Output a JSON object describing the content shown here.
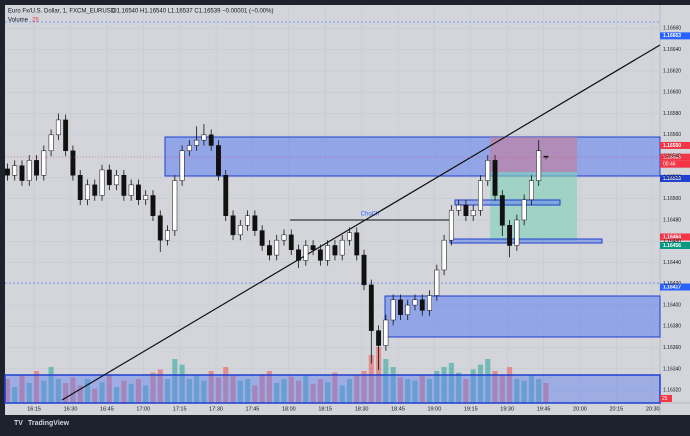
{
  "chart_data": {
    "type": "candlestick",
    "title": "Euro Fx/U.S. Dollar, 1, FXCM_EURUSD",
    "subtitle": "O1.16540 H1.16540 L1.16537 C1.16539 −0.00001 (−0.00%)",
    "annotation": "ChoCh",
    "countdown": "00:46",
    "brand": "TradingView",
    "x": [
      "16:04",
      "16:07",
      "16:10",
      "16:13",
      "16:16",
      "16:19",
      "16:22",
      "16:25",
      "16:28",
      "16:31",
      "16:34",
      "16:37",
      "16:40",
      "16:43",
      "16:46",
      "16:49",
      "16:52",
      "16:55",
      "16:58",
      "17:01",
      "17:04",
      "17:07",
      "17:10",
      "17:13",
      "17:16",
      "17:19",
      "17:22",
      "17:25",
      "17:28",
      "17:31",
      "17:34",
      "17:37",
      "17:40",
      "17:43",
      "17:46",
      "17:49",
      "17:52",
      "17:55",
      "17:58",
      "18:01",
      "18:04",
      "18:07",
      "18:10",
      "18:13",
      "18:16",
      "18:19",
      "18:22",
      "18:25",
      "18:28",
      "18:31",
      "18:34",
      "18:37",
      "18:40",
      "18:43",
      "18:46",
      "18:49",
      "18:52",
      "18:55",
      "18:58",
      "19:01",
      "19:04",
      "19:07",
      "19:10",
      "19:13",
      "19:16",
      "19:19",
      "19:22",
      "19:25",
      "19:28",
      "19:31",
      "19:34",
      "19:37",
      "19:40",
      "19:43",
      "19:46"
    ],
    "open": [
      1.16528,
      1.16522,
      1.16531,
      1.16517,
      1.16536,
      1.16522,
      1.16545,
      1.1656,
      1.16574,
      1.16545,
      1.16522,
      1.16499,
      1.16513,
      1.16503,
      1.16527,
      1.16513,
      1.16522,
      1.16503,
      1.16513,
      1.16499,
      1.16503,
      1.16484,
      1.16461,
      1.1647,
      1.16517,
      1.16545,
      1.1655,
      1.16555,
      1.1656,
      1.1655,
      1.16522,
      1.16484,
      1.16466,
      1.16475,
      1.16484,
      1.1647,
      1.16456,
      1.16447,
      1.16461,
      1.16466,
      1.16452,
      1.16442,
      1.16456,
      1.16452,
      1.16442,
      1.16456,
      1.16447,
      1.16461,
      1.16468,
      1.16447,
      1.16419,
      1.16376,
      1.16362,
      1.16386,
      1.16405,
      1.16391,
      1.164,
      1.16405,
      1.16395,
      1.16409,
      1.16433,
      1.16461,
      1.16489,
      1.16494,
      1.16484,
      1.16489,
      1.16517,
      1.16536,
      1.16503,
      1.16475,
      1.16456,
      1.1648,
      1.16499,
      1.16517,
      1.1654
    ],
    "high": [
      1.16533,
      1.16536,
      1.16536,
      1.16541,
      1.16541,
      1.1655,
      1.16565,
      1.1658,
      1.16579,
      1.1655,
      1.16527,
      1.16518,
      1.16518,
      1.16532,
      1.16532,
      1.16527,
      1.16527,
      1.16518,
      1.16518,
      1.16508,
      1.16508,
      1.16489,
      1.16475,
      1.16522,
      1.1655,
      1.16555,
      1.16568,
      1.1657,
      1.16565,
      1.16555,
      1.16527,
      1.16489,
      1.1648,
      1.16489,
      1.16489,
      1.16475,
      1.16461,
      1.16466,
      1.16471,
      1.16471,
      1.16457,
      1.16461,
      1.16461,
      1.16457,
      1.16461,
      1.16461,
      1.16466,
      1.16473,
      1.16473,
      1.16452,
      1.16424,
      1.16381,
      1.16391,
      1.1641,
      1.1641,
      1.16405,
      1.1641,
      1.1641,
      1.16414,
      1.16438,
      1.16466,
      1.16494,
      1.16499,
      1.16499,
      1.16494,
      1.16522,
      1.16541,
      1.16541,
      1.16508,
      1.1648,
      1.16485,
      1.16504,
      1.16522,
      1.16555,
      1.1654
    ],
    "low": [
      1.16517,
      1.16517,
      1.16512,
      1.16512,
      1.16517,
      1.16517,
      1.1654,
      1.16555,
      1.1654,
      1.16517,
      1.16494,
      1.16494,
      1.16498,
      1.16498,
      1.16508,
      1.16508,
      1.16498,
      1.16498,
      1.16494,
      1.16494,
      1.16479,
      1.1645,
      1.16456,
      1.16465,
      1.16512,
      1.1654,
      1.16545,
      1.1655,
      1.16545,
      1.16517,
      1.16479,
      1.16461,
      1.16461,
      1.1647,
      1.16465,
      1.16451,
      1.16442,
      1.16442,
      1.16456,
      1.16447,
      1.16435,
      1.16437,
      1.16447,
      1.16437,
      1.16437,
      1.16442,
      1.16442,
      1.16456,
      1.16442,
      1.16414,
      1.16345,
      1.16339,
      1.16357,
      1.16381,
      1.16386,
      1.16386,
      1.16395,
      1.1639,
      1.1639,
      1.16404,
      1.16428,
      1.16456,
      1.16484,
      1.16479,
      1.16479,
      1.16484,
      1.16512,
      1.16498,
      1.16465,
      1.16445,
      1.16451,
      1.16475,
      1.16494,
      1.16512,
      1.16537
    ],
    "close": [
      1.16522,
      1.16531,
      1.16517,
      1.16536,
      1.16522,
      1.16545,
      1.1656,
      1.16574,
      1.16545,
      1.16522,
      1.16499,
      1.16513,
      1.16503,
      1.16527,
      1.16513,
      1.16522,
      1.16503,
      1.16513,
      1.16499,
      1.16503,
      1.16484,
      1.16461,
      1.1647,
      1.16517,
      1.16545,
      1.1655,
      1.16555,
      1.1656,
      1.1655,
      1.16522,
      1.16484,
      1.16466,
      1.16475,
      1.16484,
      1.1647,
      1.16456,
      1.16447,
      1.16461,
      1.16466,
      1.16452,
      1.16442,
      1.16456,
      1.16452,
      1.16442,
      1.16456,
      1.16447,
      1.16461,
      1.16468,
      1.16447,
      1.16419,
      1.16376,
      1.16362,
      1.16386,
      1.16405,
      1.16391,
      1.164,
      1.16405,
      1.16395,
      1.16409,
      1.16433,
      1.16461,
      1.16489,
      1.16494,
      1.16484,
      1.16489,
      1.16517,
      1.16536,
      1.16503,
      1.16475,
      1.16456,
      1.1648,
      1.16499,
      1.16517,
      1.16545,
      1.16539
    ],
    "up_color": "#ffffff",
    "down_color": "#111111",
    "volume": {
      "name": "Volume",
      "up_color": "#26a69a",
      "down_color": "#ef5350",
      "values": [
        30,
        20,
        35,
        25,
        40,
        28,
        45,
        30,
        25,
        32,
        22,
        30,
        18,
        26,
        35,
        20,
        28,
        24,
        30,
        22,
        38,
        42,
        30,
        55,
        48,
        30,
        35,
        28,
        40,
        32,
        45,
        35,
        28,
        30,
        22,
        36,
        40,
        25,
        30,
        33,
        28,
        35,
        24,
        30,
        26,
        38,
        22,
        30,
        35,
        40,
        60,
        70,
        55,
        45,
        32,
        30,
        28,
        35,
        30,
        40,
        45,
        50,
        38,
        30,
        42,
        48,
        55,
        40,
        35,
        45,
        30,
        28,
        35,
        30,
        25
      ],
      "ylim": [
        0,
        100
      ]
    },
    "xlim": [
      "16:03",
      "20:33"
    ],
    "xticks": [
      "16:15",
      "16:30",
      "16:45",
      "17:00",
      "17:15",
      "17:30",
      "17:45",
      "18:00",
      "18:15",
      "18:30",
      "18:45",
      "19:00",
      "19:15",
      "19:30",
      "19:45",
      "20:00",
      "20:15",
      "20:30"
    ],
    "ylim": [
      1.16308,
      1.16682
    ],
    "yticks": [
      {
        "value": 1.1666,
        "label": "1.16660"
      },
      {
        "value": 1.1664,
        "label": "1.16640"
      },
      {
        "value": 1.1662,
        "label": "1.16620"
      },
      {
        "value": 1.166,
        "label": "1.16600"
      },
      {
        "value": 1.1658,
        "label": "1.16580"
      },
      {
        "value": 1.1656,
        "label": "1.16560"
      },
      {
        "value": 1.1654,
        "label": "1.16540"
      },
      {
        "value": 1.1652,
        "label": "1.16520"
      },
      {
        "value": 1.165,
        "label": "1.16500"
      },
      {
        "value": 1.1648,
        "label": "1.16480"
      },
      {
        "value": 1.1646,
        "label": "1.16460"
      },
      {
        "value": 1.1644,
        "label": "1.16440"
      },
      {
        "value": 1.1642,
        "label": "1.16420"
      },
      {
        "value": 1.164,
        "label": "1.16400"
      },
      {
        "value": 1.1638,
        "label": "1.16380"
      },
      {
        "value": 1.1636,
        "label": "1.16360"
      },
      {
        "value": 1.1634,
        "label": "1.16340"
      },
      {
        "value": 1.1632,
        "label": "1.16320"
      }
    ],
    "price_tags": [
      {
        "value": 1.16653,
        "label": "1.16653",
        "color": "#2962ff"
      },
      {
        "value": 1.1655,
        "label": "1.16550",
        "color": "#f23645"
      },
      {
        "value": 1.16539,
        "label": "1.16539",
        "color": "#f23645"
      },
      {
        "value": 1.16519,
        "label": "1.16519",
        "color": "#1e3fd0"
      },
      {
        "value": 1.16464,
        "label": "1.16464",
        "color": "#f23645"
      },
      {
        "value": 1.16456,
        "label": "1.16456",
        "color": "#089981"
      },
      {
        "value": 1.16417,
        "label": "1.16417",
        "color": "#2962ff"
      }
    ],
    "grid": true
  }
}
